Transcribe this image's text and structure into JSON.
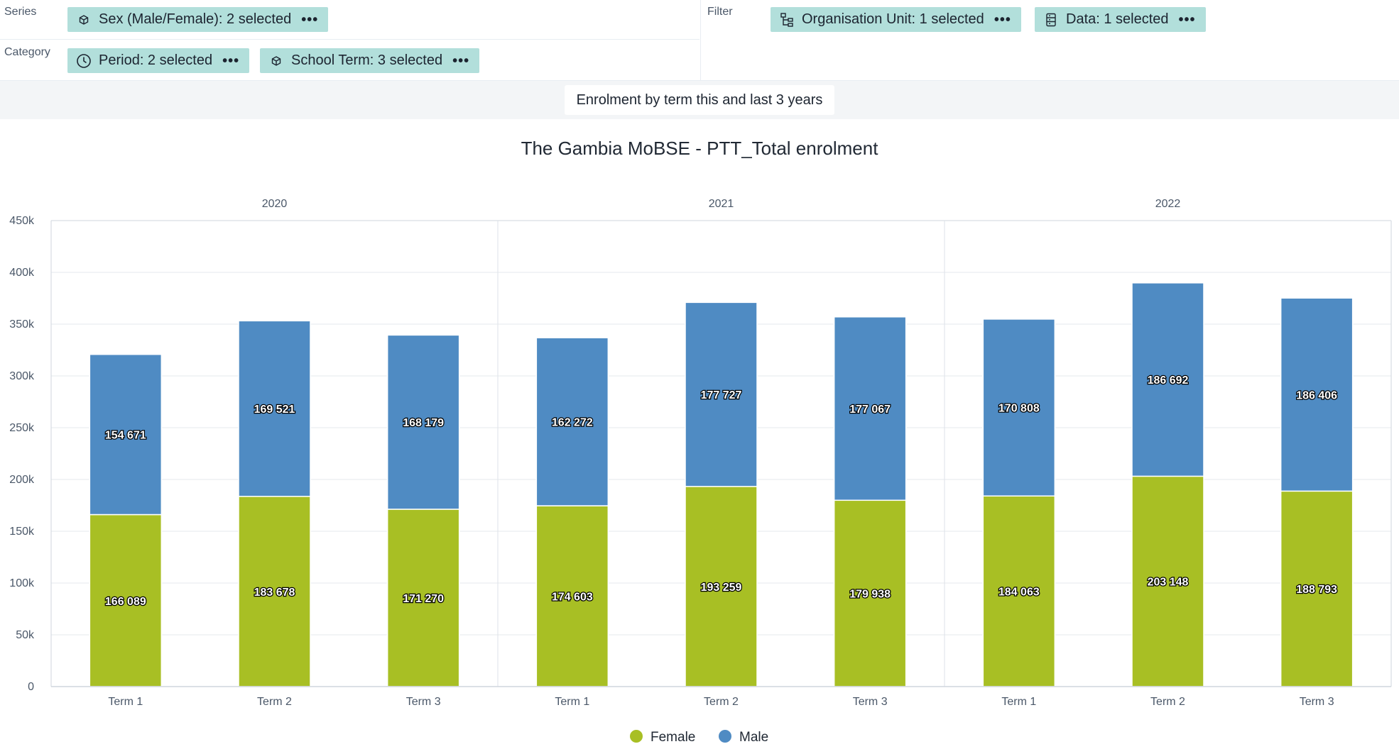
{
  "layout": {
    "series_label": "Series",
    "category_label": "Category",
    "filter_label": "Filter",
    "series_chips": [
      {
        "label": "Sex (Male/Female): 2 selected",
        "icon": "dimension-icon",
        "menu": "•••"
      }
    ],
    "category_chips": [
      {
        "label": "Period: 2 selected",
        "icon": "clock-icon",
        "menu": "•••"
      },
      {
        "label": "School Term: 3 selected",
        "icon": "dimension-icon",
        "menu": "•••"
      }
    ],
    "filter_chips": [
      {
        "label": "Organisation Unit: 1 selected",
        "icon": "org-unit-tree-icon",
        "menu": "•••"
      },
      {
        "label": "Data: 1 selected",
        "icon": "database-icon",
        "menu": "•••"
      }
    ]
  },
  "visualization_name": "Enrolment by term this and last 3 years",
  "colors": {
    "female": "#a8bf24",
    "male": "#4f8bc3",
    "chip_bg": "#b2dfdb"
  },
  "chart_data": {
    "type": "bar",
    "stacked": true,
    "title": "The Gambia MoBSE - PTT_Total enrolment",
    "groups": [
      {
        "name": "2020",
        "categories": [
          "Term 1",
          "Term 2",
          "Term 3"
        ]
      },
      {
        "name": "2021",
        "categories": [
          "Term 1",
          "Term 2",
          "Term 3"
        ]
      },
      {
        "name": "2022",
        "categories": [
          "Term 1",
          "Term 2",
          "Term 3"
        ]
      }
    ],
    "series": [
      {
        "name": "Female",
        "color": "#a8bf24",
        "values": [
          166089,
          183678,
          171270,
          174603,
          193259,
          179938,
          184063,
          203148,
          188793
        ]
      },
      {
        "name": "Male",
        "color": "#4f8bc3",
        "values": [
          154671,
          169521,
          168179,
          162272,
          177727,
          177067,
          170808,
          186692,
          186406
        ]
      }
    ],
    "value_labels": {
      "Female": [
        "166 089",
        "183 678",
        "171 270",
        "174 603",
        "193 259",
        "179 938",
        "184 063",
        "203 148",
        "188 793"
      ],
      "Male": [
        "154 671",
        "169 521",
        "168 179",
        "162 272",
        "177 727",
        "177 067",
        "170 808",
        "186 692",
        "186 406"
      ]
    },
    "y_ticks": [
      "0",
      "50k",
      "100k",
      "150k",
      "200k",
      "250k",
      "300k",
      "350k",
      "400k",
      "450k"
    ],
    "ylim": [
      0,
      450000
    ],
    "legend_position": "bottom-center"
  }
}
